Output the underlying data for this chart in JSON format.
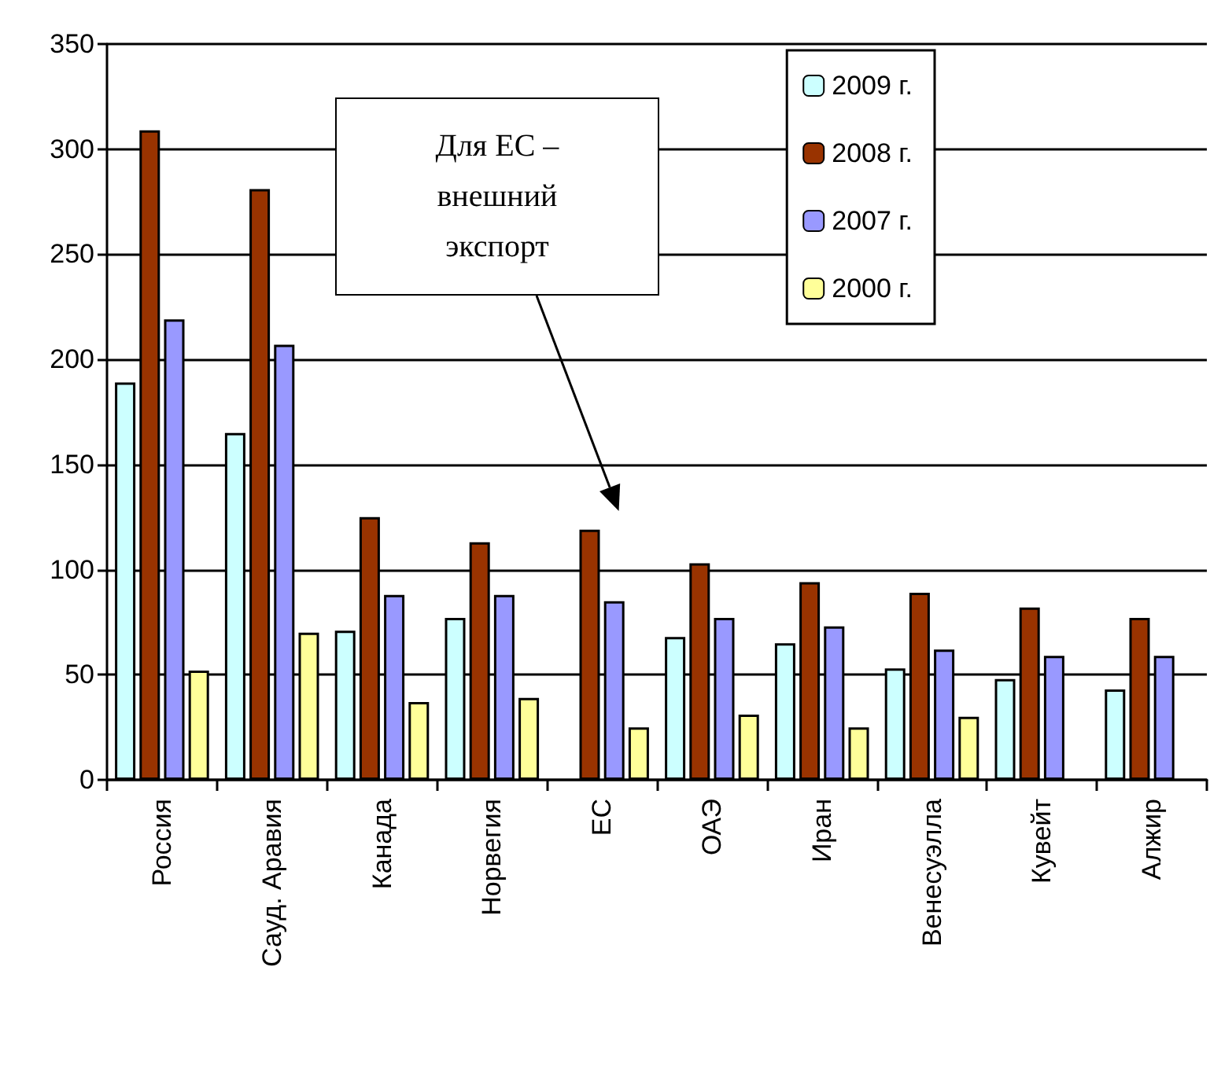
{
  "chart_data": {
    "type": "bar",
    "categories": [
      "Россия",
      "Сауд. Аравия",
      "Канада",
      "Норвегия",
      "ЕС",
      "ОАЭ",
      "Иран",
      "Венесуэлла",
      "Кувейт",
      "Алжир"
    ],
    "series": [
      {
        "name": "2009 г.",
        "color": "#ccffff",
        "values": [
          189,
          165,
          71,
          77,
          null,
          68,
          65,
          53,
          48,
          43
        ]
      },
      {
        "name": "2008 г.",
        "color": "#993300",
        "values": [
          309,
          281,
          125,
          113,
          119,
          103,
          94,
          89,
          82,
          77
        ]
      },
      {
        "name": "2007 г.",
        "color": "#9999ff",
        "values": [
          219,
          207,
          88,
          88,
          85,
          77,
          73,
          62,
          59,
          59
        ]
      },
      {
        "name": "2000 г.",
        "color": "#ffff99",
        "values": [
          52,
          70,
          37,
          39,
          25,
          31,
          25,
          30,
          null,
          null
        ]
      }
    ],
    "ylim": [
      0,
      350
    ],
    "yticks": [
      0,
      50,
      100,
      150,
      200,
      250,
      300,
      350
    ],
    "grid": "y",
    "legend": "top right",
    "annotations": [
      "Для ЕС –\nвнешний\nэкспорт"
    ]
  }
}
